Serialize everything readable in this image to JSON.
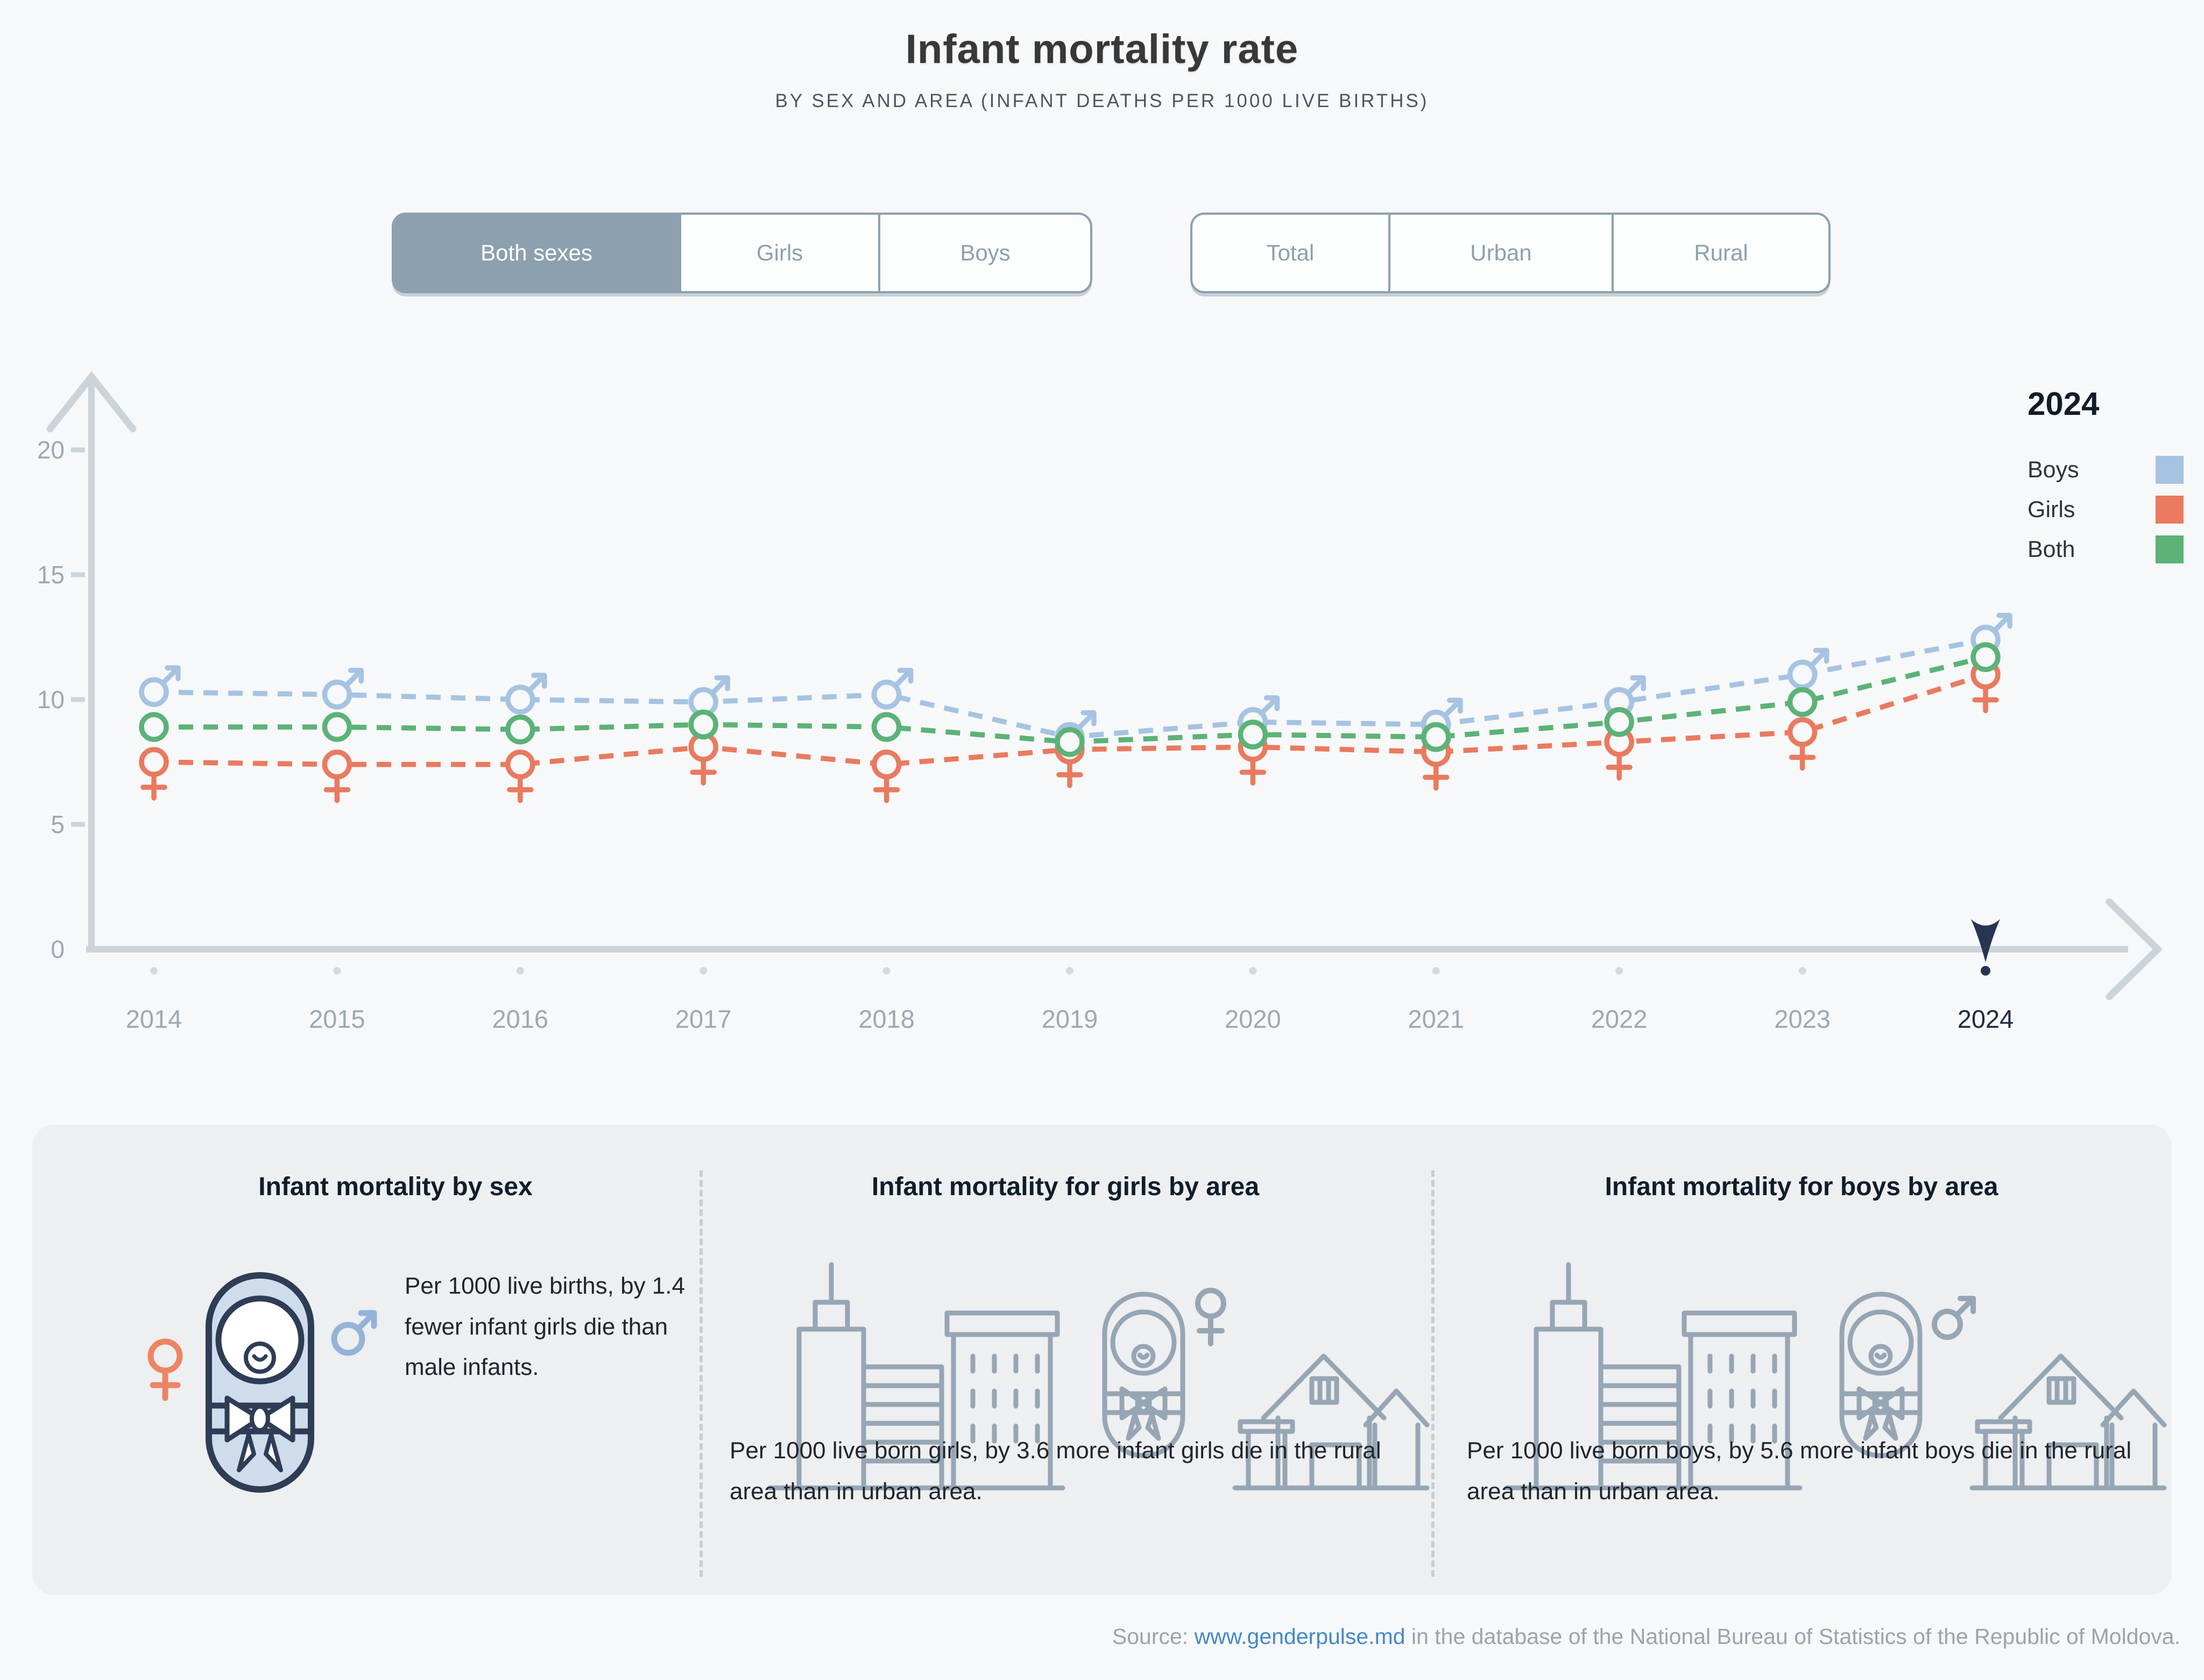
{
  "header": {
    "title": "Infant mortality rate",
    "subtitle": "BY SEX AND AREA (INFANT DEATHS PER 1000 LIVE BIRTHS)"
  },
  "filters": {
    "sex": {
      "options": [
        "Both sexes",
        "Girls",
        "Boys"
      ],
      "selected": "Both sexes"
    },
    "area": {
      "options": [
        "Total",
        "Urban",
        "Rural"
      ],
      "selected": ""
    }
  },
  "chart_data": {
    "type": "line",
    "x": [
      "2014",
      "2015",
      "2016",
      "2017",
      "2018",
      "2019",
      "2020",
      "2021",
      "2022",
      "2023",
      "2024"
    ],
    "series": [
      {
        "name": "Boys",
        "marker": "male-symbol",
        "color": "#a6c3e2",
        "values": [
          10.3,
          10.2,
          10.0,
          9.9,
          10.2,
          8.5,
          9.1,
          9.0,
          9.9,
          11.0,
          12.4
        ]
      },
      {
        "name": "Girls",
        "marker": "female-symbol",
        "color": "#e97a5f",
        "values": [
          7.5,
          7.4,
          7.4,
          8.1,
          7.4,
          8.0,
          8.1,
          7.9,
          8.3,
          8.7,
          11.0
        ]
      },
      {
        "name": "Both",
        "marker": "circle",
        "color": "#5cb277",
        "values": [
          8.9,
          8.9,
          8.8,
          9.0,
          8.9,
          8.3,
          8.6,
          8.5,
          9.1,
          9.9,
          11.7
        ]
      }
    ],
    "ylim": [
      0,
      20
    ],
    "yticks": [
      0,
      5,
      10,
      15,
      20
    ],
    "grid": "off",
    "legend": {
      "title": "2024",
      "position": "top-right",
      "entries": [
        "Boys",
        "Girls",
        "Both"
      ]
    },
    "highlight_year": "2024",
    "line_style": "dashed"
  },
  "colors": {
    "boys": "#a6c3e2",
    "girls": "#e97a5f",
    "both": "#5cb277",
    "axis": "#ccd4db",
    "tick_label": "#9da8b3",
    "highlight": "#273650",
    "background": "#f7f8f9"
  },
  "cards": [
    {
      "title": "Infant mortality by sex",
      "text": "Per 1000 live births, by 1.4 fewer infant girls die than male infants.",
      "icons": [
        "female-symbol-icon",
        "swaddled-baby-icon",
        "male-symbol-icon"
      ]
    },
    {
      "title": "Infant mortality for girls by area",
      "text": "Per 1000 live born girls, by 3.6 more infant girls die in the rural area than in urban area.",
      "icons": [
        "city-buildings-icon",
        "baby-girl-icon",
        "rural-house-icon"
      ]
    },
    {
      "title": "Infant mortality for boys by area",
      "text": "Per 1000 live born boys, by 5.6 more infant boys die in the rural area than in urban area.",
      "icons": [
        "city-buildings-icon",
        "baby-boy-icon",
        "rural-house-icon"
      ]
    }
  ],
  "source": {
    "label": "Source: ",
    "link_text": "www.genderpulse.md",
    "rest": " in the database of the National Bureau of Statistics of the Republic of Moldova."
  }
}
